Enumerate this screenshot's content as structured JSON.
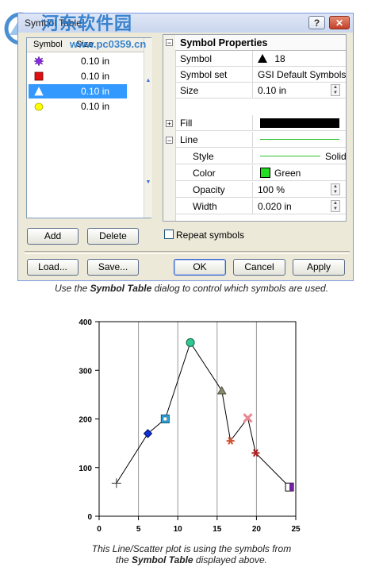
{
  "watermark": {
    "site": "河东软件园",
    "url": "www.pc0359.cn"
  },
  "dialog": {
    "title": "Symbol Table",
    "list": {
      "col_symbol": "Symbol",
      "col_size": "Size",
      "items": [
        {
          "size": "0.10 in",
          "icon": "purple-starburst-icon",
          "color": "#8a2be2"
        },
        {
          "size": "0.10 in",
          "icon": "red-square-icon",
          "color": "#e01010"
        },
        {
          "size": "0.10 in",
          "icon": "white-triangle-icon",
          "color": "#ffffff"
        },
        {
          "size": "0.10 in",
          "icon": "yellow-circle-icon",
          "color": "#ffff00"
        }
      ]
    },
    "properties": {
      "header": "Symbol Properties",
      "symbol_label": "Symbol",
      "symbol_value": "18",
      "symbol_set_label": "Symbol set",
      "symbol_set_value": "GSI Default Symbols",
      "size_label": "Size",
      "size_value": "0.10 in",
      "fill_label": "Fill",
      "line_label": "Line",
      "style_label": "Style",
      "style_value": "Solid",
      "color_label": "Color",
      "color_value": "Green",
      "opacity_label": "Opacity",
      "opacity_value": "100 %",
      "width_label": "Width",
      "width_value": "0.020 in"
    },
    "add_label": "Add",
    "delete_label": "Delete",
    "repeat_label": "Repeat symbols",
    "load_label": "Load...",
    "save_label": "Save...",
    "ok_label": "OK",
    "cancel_label": "Cancel",
    "apply_label": "Apply"
  },
  "caption1": {
    "pre": "Use the ",
    "bold": "Symbol Table",
    "post": " dialog to control which symbols are used."
  },
  "caption2": {
    "line1": "This Line/Scatter plot is using the symbols from",
    "pre": "the ",
    "bold": "Symbol Table",
    "post": " displayed above."
  },
  "chart_data": {
    "type": "line",
    "xlim": [
      0,
      25
    ],
    "ylim": [
      0,
      400
    ],
    "xticks": [
      0,
      5,
      10,
      15,
      20,
      25
    ],
    "yticks": [
      0,
      100,
      200,
      300,
      400
    ],
    "grid": "vertical",
    "points": [
      {
        "x": 2.2,
        "y": 68,
        "symbol": "plus",
        "color": "#333333"
      },
      {
        "x": 6.2,
        "y": 170,
        "symbol": "diamond",
        "color": "#1030d0"
      },
      {
        "x": 8.4,
        "y": 200,
        "symbol": "square-box",
        "color": "#30b0e8"
      },
      {
        "x": 11.6,
        "y": 357,
        "symbol": "circle",
        "color": "#30c890"
      },
      {
        "x": 15.6,
        "y": 258,
        "symbol": "triangle",
        "color": "#8a8a6a"
      },
      {
        "x": 16.7,
        "y": 155,
        "symbol": "star",
        "color": "#d05030"
      },
      {
        "x": 18.9,
        "y": 202,
        "symbol": "x",
        "color": "#e88890"
      },
      {
        "x": 19.9,
        "y": 130,
        "symbol": "star",
        "color": "#b02020"
      },
      {
        "x": 24.2,
        "y": 60,
        "symbol": "half-square",
        "color": "#7020a0"
      }
    ]
  }
}
